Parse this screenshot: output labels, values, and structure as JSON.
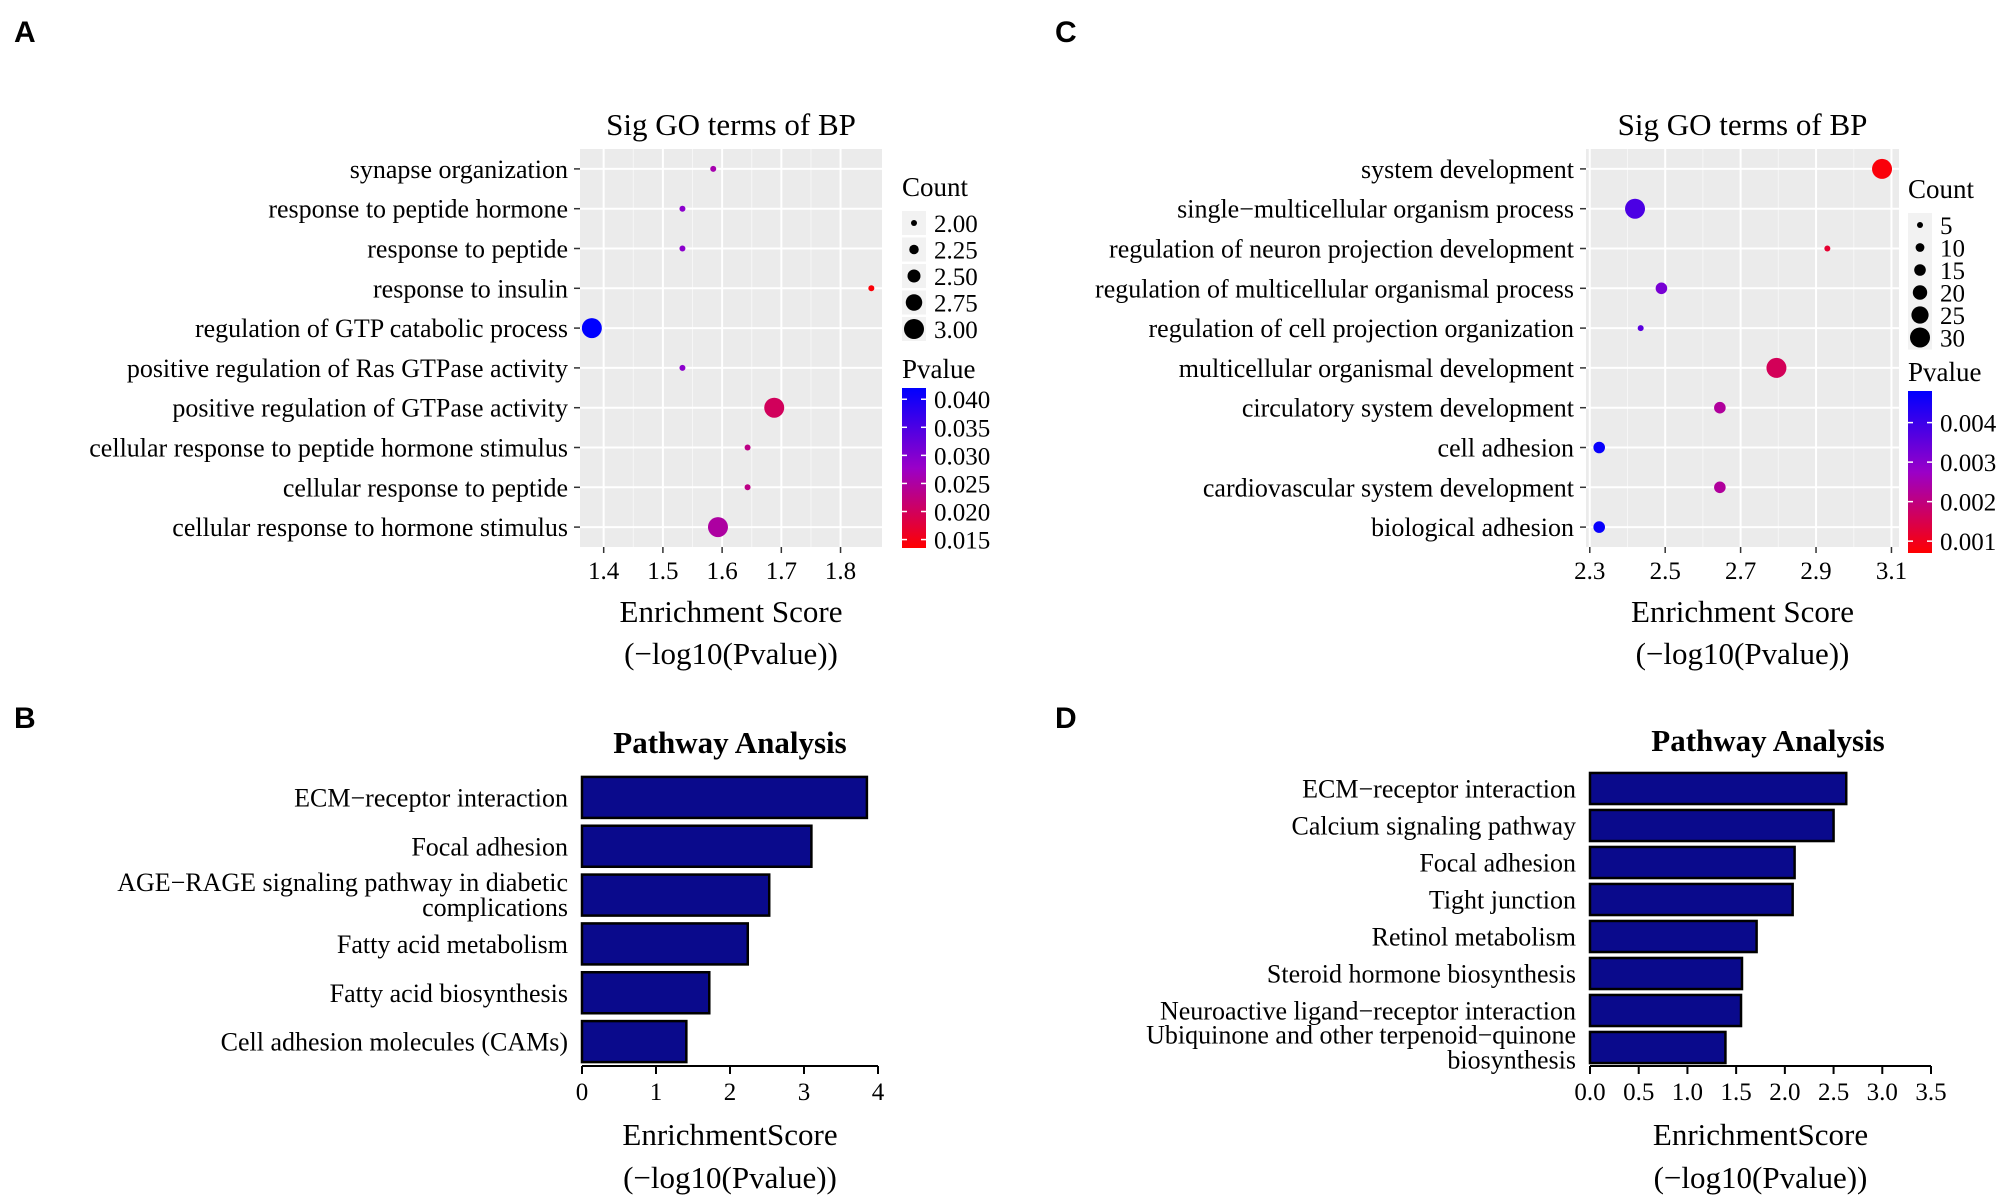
{
  "panels": {
    "A": "A",
    "B": "B",
    "C": "C",
    "D": "D"
  },
  "chart_data": [
    {
      "panel": "A",
      "type": "scatter",
      "title": "Sig GO terms of BP",
      "xlabel": "Enrichment Score",
      "xlabel2": "(−log10(Pvalue))",
      "xlim": [
        1.36,
        1.87
      ],
      "xticks": [
        "1.4",
        "1.5",
        "1.6",
        "1.7",
        "1.8"
      ],
      "xtick_values": [
        1.4,
        1.5,
        1.6,
        1.7,
        1.8
      ],
      "grid": true,
      "categories": [
        "synapse organization",
        "response to peptide hormone",
        "response to peptide",
        "response to insulin",
        "regulation of GTP catabolic process",
        "positive regulation of Ras GTPase activity",
        "positive regulation of GTPase activity",
        "cellular response to peptide hormone stimulus",
        "cellular response to peptide",
        "cellular response to hormone stimulus"
      ],
      "x": [
        1.585,
        1.533,
        1.533,
        1.852,
        1.38,
        1.533,
        1.688,
        1.643,
        1.643,
        1.593
      ],
      "count": [
        2,
        2,
        2,
        2,
        3,
        2,
        3,
        2,
        2,
        3
      ],
      "pvalue": [
        0.026,
        0.029,
        0.029,
        0.014,
        0.042,
        0.029,
        0.02,
        0.023,
        0.023,
        0.025
      ],
      "legend_count_title": "Count",
      "legend_count_labels": [
        "2.00",
        "2.25",
        "2.50",
        "2.75",
        "3.00"
      ],
      "legend_count_values": [
        2.0,
        2.25,
        2.5,
        2.75,
        3.0
      ],
      "legend_p_title": "Pvalue",
      "legend_p_labels": [
        "0.040",
        "0.035",
        "0.030",
        "0.025",
        "0.020",
        "0.015"
      ],
      "legend_p_values": [
        0.04,
        0.035,
        0.03,
        0.025,
        0.02,
        0.015
      ],
      "plim": [
        0.0135,
        0.042
      ],
      "countlim": [
        2,
        3
      ],
      "color_low_p": "#ff0000",
      "color_high_p": "#0000ff"
    },
    {
      "panel": "C",
      "type": "scatter",
      "title": "Sig GO terms of BP",
      "xlabel": "Enrichment Score",
      "xlabel2": "(−log10(Pvalue))",
      "xlim": [
        2.29,
        3.12
      ],
      "xticks": [
        "2.3",
        "2.5",
        "2.7",
        "2.9",
        "3.1"
      ],
      "xtick_values": [
        2.3,
        2.5,
        2.7,
        2.9,
        3.1
      ],
      "grid": true,
      "categories": [
        "system development",
        "single−multicellular organism process",
        "regulation of neuron projection development",
        "regulation of multicellular organismal process",
        "regulation of cell projection organization",
        "multicellular organismal development",
        "circulatory system development",
        "cell adhesion",
        "cardiovascular system development",
        "biological adhesion"
      ],
      "x": [
        3.075,
        2.42,
        2.93,
        2.49,
        2.435,
        2.795,
        2.645,
        2.325,
        2.645,
        2.325
      ],
      "count": [
        30,
        30,
        5,
        15,
        5,
        30,
        15,
        15,
        15,
        15
      ],
      "pvalue": [
        0.0008,
        0.0038,
        0.0012,
        0.0032,
        0.0036,
        0.0016,
        0.0023,
        0.0047,
        0.0023,
        0.0047
      ],
      "legend_count_title": "Count",
      "legend_count_labels": [
        "5",
        "10",
        "15",
        "20",
        "25",
        "30"
      ],
      "legend_count_values": [
        5,
        10,
        15,
        20,
        25,
        30
      ],
      "legend_p_title": "Pvalue",
      "legend_p_labels": [
        "0.004",
        "0.003",
        "0.002",
        "0.001"
      ],
      "legend_p_values": [
        0.004,
        0.003,
        0.002,
        0.001
      ],
      "plim": [
        0.0007,
        0.0048
      ],
      "countlim": [
        5,
        30
      ],
      "color_low_p": "#ff0000",
      "color_high_p": "#0000ff"
    },
    {
      "panel": "B",
      "type": "bar",
      "orientation": "horizontal",
      "title": "Pathway Analysis",
      "xlabel": "EnrichmentScore",
      "xlabel2": "(−log10(Pvalue))",
      "xlim": [
        0,
        4
      ],
      "xticks": [
        "0",
        "1",
        "2",
        "3",
        "4"
      ],
      "xtick_values": [
        0,
        1,
        2,
        3,
        4
      ],
      "categories": [
        "ECM−receptor interaction",
        "Focal adhesion",
        "AGE−RAGE signaling pathway in diabetic complications",
        "Fatty acid metabolism",
        "Fatty acid biosynthesis",
        "Cell adhesion molecules (CAMs)"
      ],
      "category_lines": [
        [
          "ECM−receptor interaction"
        ],
        [
          "Focal adhesion"
        ],
        [
          "AGE−RAGE signaling pathway in diabetic",
          "complications"
        ],
        [
          "Fatty acid metabolism"
        ],
        [
          "Fatty acid biosynthesis"
        ],
        [
          "Cell adhesion molecules (CAMs)"
        ]
      ],
      "values": [
        3.85,
        3.1,
        2.53,
        2.24,
        1.72,
        1.41
      ],
      "bar_color": "#0a0a8c"
    },
    {
      "panel": "D",
      "type": "bar",
      "orientation": "horizontal",
      "title": "Pathway Analysis",
      "xlabel": "EnrichmentScore",
      "xlabel2": "(−log10(Pvalue))",
      "xlim": [
        0,
        3.5
      ],
      "xticks": [
        "0.0",
        "0.5",
        "1.0",
        "1.5",
        "2.0",
        "2.5",
        "3.0",
        "3.5"
      ],
      "xtick_values": [
        0,
        0.5,
        1.0,
        1.5,
        2.0,
        2.5,
        3.0,
        3.5
      ],
      "categories": [
        "ECM−receptor interaction",
        "Calcium signaling pathway",
        "Focal adhesion",
        "Tight junction",
        "Retinol metabolism",
        "Steroid hormone biosynthesis",
        "Neuroactive ligand−receptor interaction",
        "Ubiquinone and other terpenoid−quinone biosynthesis"
      ],
      "category_lines": [
        [
          "ECM−receptor interaction"
        ],
        [
          "Calcium signaling pathway"
        ],
        [
          "Focal adhesion"
        ],
        [
          "Tight junction"
        ],
        [
          "Retinol metabolism"
        ],
        [
          "Steroid hormone biosynthesis"
        ],
        [
          "Neuroactive ligand−receptor interaction"
        ],
        [
          "Ubiquinone and other terpenoid−quinone",
          "biosynthesis"
        ]
      ],
      "values": [
        2.63,
        2.5,
        2.1,
        2.08,
        1.71,
        1.56,
        1.55,
        1.39
      ],
      "bar_color": "#0a0a8c"
    }
  ]
}
